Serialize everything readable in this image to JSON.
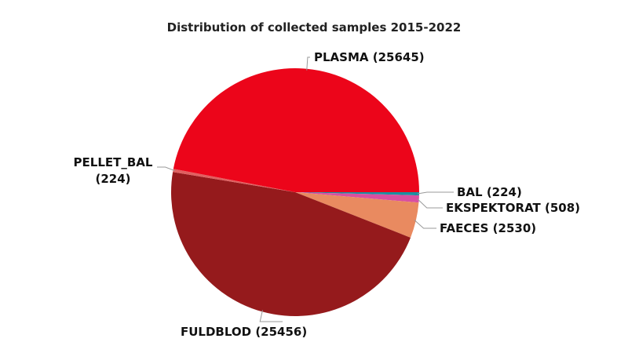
{
  "chart_data": {
    "type": "pie",
    "title": "Distribution of collected samples 2015-2022",
    "categories": [
      "BAL (224)",
      "EKSPEKTORAT (508)",
      "FAECES (2530)",
      "FULDBLOD (25456)",
      "PELLET_BAL (224)",
      "PLASMA (25645)"
    ],
    "values": [
      224,
      508,
      2530,
      25456,
      224,
      25645
    ],
    "colors": [
      "#1a8fa0",
      "#d94fa0",
      "#e98a60",
      "#951a1c",
      "#e06060",
      "#ec051a"
    ]
  }
}
